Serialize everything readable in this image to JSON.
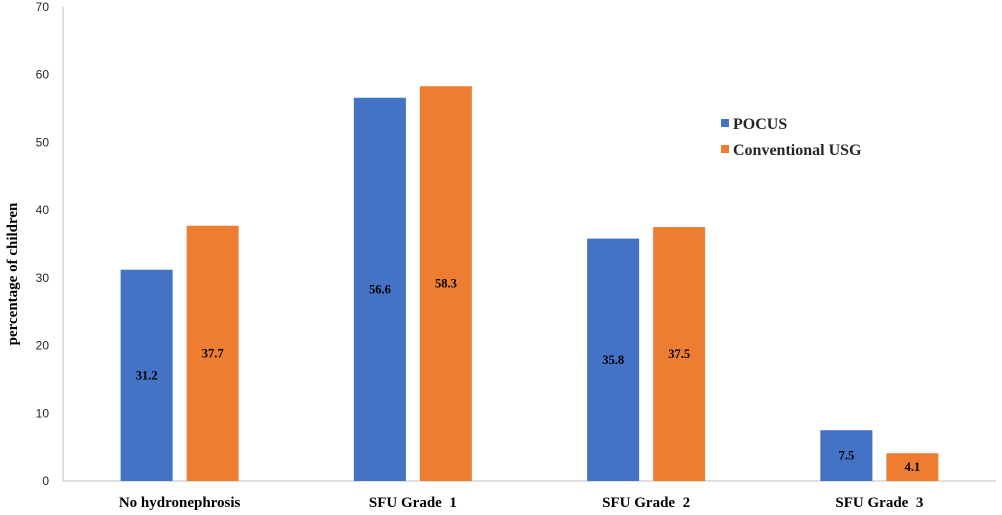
{
  "chart_data": {
    "type": "bar",
    "title": "",
    "xlabel": "",
    "ylabel": "percentage of children",
    "ylim": [
      0,
      70
    ],
    "yticks": [
      0,
      10,
      20,
      30,
      40,
      50,
      60,
      70
    ],
    "grid": false,
    "legend_position": "right",
    "categories": [
      "No hydronephrosis",
      "SFU Grade  1",
      "SFU Grade  2",
      "SFU Grade  3"
    ],
    "series": [
      {
        "name": "POCUS",
        "color": "#4472C4",
        "values": [
          31.2,
          56.6,
          35.8,
          7.5
        ],
        "labels": [
          "31.2",
          "56.6",
          "35.8",
          "7.5"
        ]
      },
      {
        "name": "Conventional USG",
        "color": "#ED7D31",
        "values": [
          37.7,
          58.3,
          37.5,
          4.1
        ],
        "labels": [
          "37.7",
          "58.3",
          "37.5",
          "4.1"
        ]
      }
    ]
  }
}
